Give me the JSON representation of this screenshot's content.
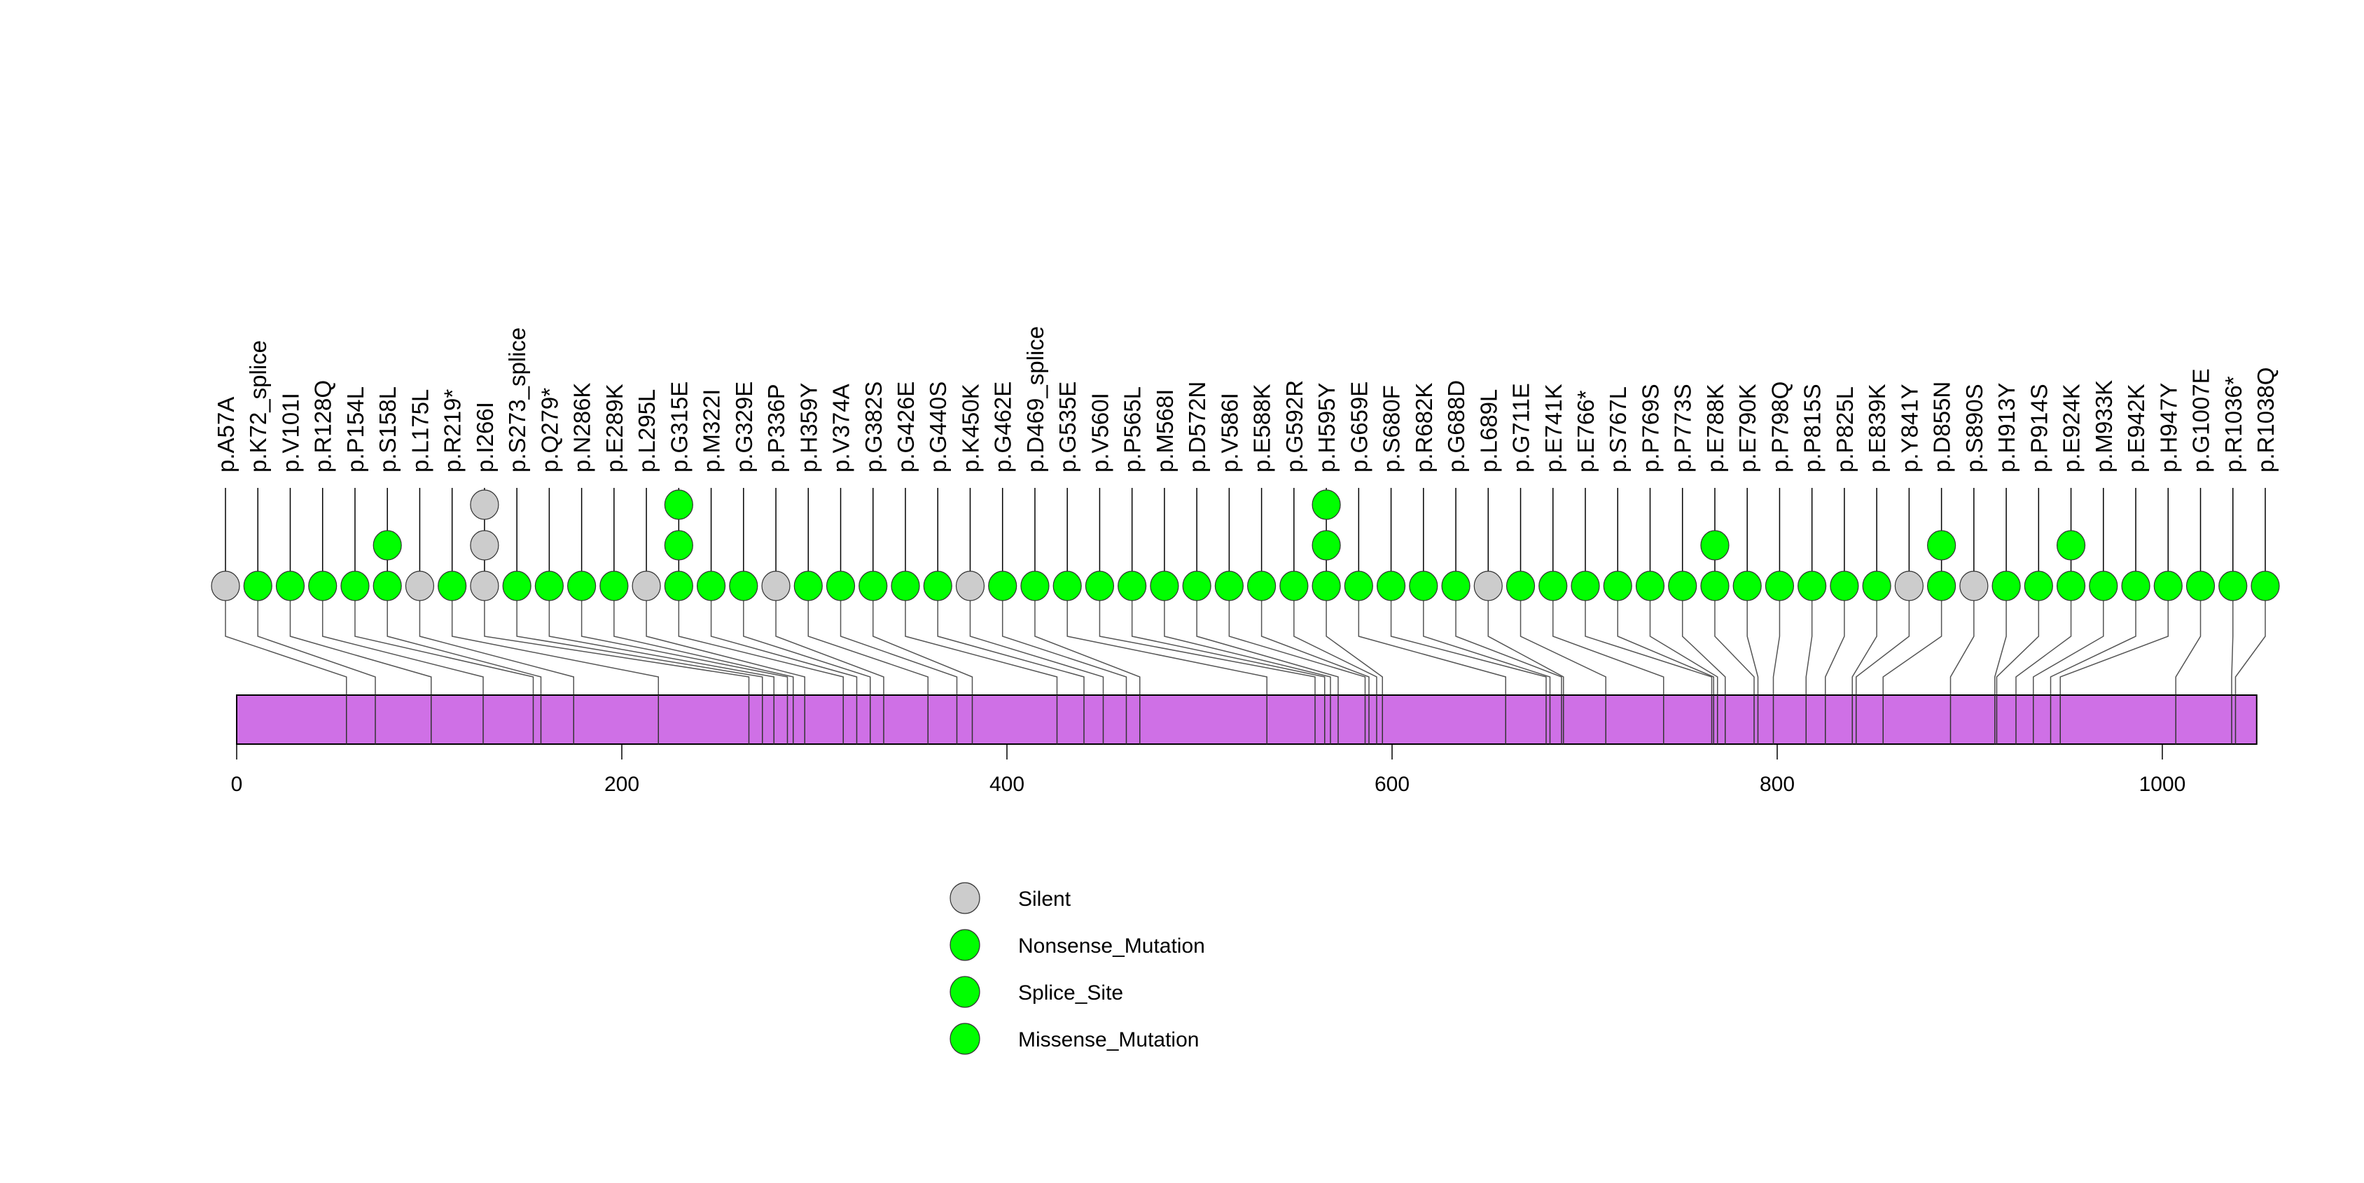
{
  "chart_data": {
    "type": "lollipop",
    "title": "",
    "xlabel": "",
    "ylabel": "",
    "xlim": [
      0,
      1049
    ],
    "protein_length": 1049,
    "x_ticks": [
      0,
      200,
      400,
      600,
      800,
      1000
    ],
    "x_tick_labels": [
      "0",
      "200",
      "400",
      "600",
      "800",
      "1000"
    ],
    "colors": {
      "Silent": "#cccccc",
      "Green": "#00ff00",
      "protein_bar": "#cf70e6"
    },
    "legend_position": "bottom-center",
    "legend": [
      {
        "label": "Silent",
        "color": "#cccccc"
      },
      {
        "label": "Nonsense_Mutation",
        "color": "#00ff00"
      },
      {
        "label": "Splice_Site",
        "color": "#00ff00"
      },
      {
        "label": "Missense_Mutation",
        "color": "#00ff00"
      }
    ],
    "mutations": [
      {
        "label": "p.A57A",
        "position": 57,
        "count": 1,
        "type": "Silent"
      },
      {
        "label": "p.K72_splice",
        "position": 72,
        "count": 1,
        "type": "Splice_Site"
      },
      {
        "label": "p.V101I",
        "position": 101,
        "count": 1,
        "type": "Missense_Mutation"
      },
      {
        "label": "p.R128Q",
        "position": 128,
        "count": 1,
        "type": "Missense_Mutation"
      },
      {
        "label": "p.P154L",
        "position": 154,
        "count": 1,
        "type": "Missense_Mutation"
      },
      {
        "label": "p.S158L",
        "position": 158,
        "count": 2,
        "type": "Missense_Mutation"
      },
      {
        "label": "p.L175L",
        "position": 175,
        "count": 1,
        "type": "Silent"
      },
      {
        "label": "p.R219*",
        "position": 219,
        "count": 1,
        "type": "Nonsense_Mutation"
      },
      {
        "label": "p.I266I",
        "position": 266,
        "count": 3,
        "type": "Silent"
      },
      {
        "label": "p.S273_splice",
        "position": 273,
        "count": 1,
        "type": "Splice_Site"
      },
      {
        "label": "p.Q279*",
        "position": 279,
        "count": 1,
        "type": "Nonsense_Mutation"
      },
      {
        "label": "p.N286K",
        "position": 286,
        "count": 1,
        "type": "Missense_Mutation"
      },
      {
        "label": "p.E289K",
        "position": 289,
        "count": 1,
        "type": "Missense_Mutation"
      },
      {
        "label": "p.L295L",
        "position": 295,
        "count": 1,
        "type": "Silent"
      },
      {
        "label": "p.G315E",
        "position": 315,
        "count": 3,
        "type": "Missense_Mutation"
      },
      {
        "label": "p.M322I",
        "position": 322,
        "count": 1,
        "type": "Missense_Mutation"
      },
      {
        "label": "p.G329E",
        "position": 329,
        "count": 1,
        "type": "Missense_Mutation"
      },
      {
        "label": "p.P336P",
        "position": 336,
        "count": 1,
        "type": "Silent"
      },
      {
        "label": "p.H359Y",
        "position": 359,
        "count": 1,
        "type": "Missense_Mutation"
      },
      {
        "label": "p.V374A",
        "position": 374,
        "count": 1,
        "type": "Missense_Mutation"
      },
      {
        "label": "p.G382S",
        "position": 382,
        "count": 1,
        "type": "Missense_Mutation"
      },
      {
        "label": "p.G426E",
        "position": 426,
        "count": 1,
        "type": "Missense_Mutation"
      },
      {
        "label": "p.G440S",
        "position": 440,
        "count": 1,
        "type": "Missense_Mutation"
      },
      {
        "label": "p.K450K",
        "position": 450,
        "count": 1,
        "type": "Silent"
      },
      {
        "label": "p.G462E",
        "position": 462,
        "count": 1,
        "type": "Missense_Mutation"
      },
      {
        "label": "p.D469_splice",
        "position": 469,
        "count": 1,
        "type": "Splice_Site"
      },
      {
        "label": "p.G535E",
        "position": 535,
        "count": 1,
        "type": "Missense_Mutation"
      },
      {
        "label": "p.V560I",
        "position": 560,
        "count": 1,
        "type": "Missense_Mutation"
      },
      {
        "label": "p.P565L",
        "position": 565,
        "count": 1,
        "type": "Missense_Mutation"
      },
      {
        "label": "p.M568I",
        "position": 568,
        "count": 1,
        "type": "Missense_Mutation"
      },
      {
        "label": "p.D572N",
        "position": 572,
        "count": 1,
        "type": "Missense_Mutation"
      },
      {
        "label": "p.V586I",
        "position": 586,
        "count": 1,
        "type": "Missense_Mutation"
      },
      {
        "label": "p.E588K",
        "position": 588,
        "count": 1,
        "type": "Missense_Mutation"
      },
      {
        "label": "p.G592R",
        "position": 592,
        "count": 1,
        "type": "Missense_Mutation"
      },
      {
        "label": "p.H595Y",
        "position": 595,
        "count": 3,
        "type": "Missense_Mutation"
      },
      {
        "label": "p.G659E",
        "position": 659,
        "count": 1,
        "type": "Missense_Mutation"
      },
      {
        "label": "p.S680F",
        "position": 680,
        "count": 1,
        "type": "Missense_Mutation"
      },
      {
        "label": "p.R682K",
        "position": 682,
        "count": 1,
        "type": "Missense_Mutation"
      },
      {
        "label": "p.G688D",
        "position": 688,
        "count": 1,
        "type": "Missense_Mutation"
      },
      {
        "label": "p.L689L",
        "position": 689,
        "count": 1,
        "type": "Silent"
      },
      {
        "label": "p.G711E",
        "position": 711,
        "count": 1,
        "type": "Missense_Mutation"
      },
      {
        "label": "p.E741K",
        "position": 741,
        "count": 1,
        "type": "Missense_Mutation"
      },
      {
        "label": "p.E766*",
        "position": 766,
        "count": 1,
        "type": "Nonsense_Mutation"
      },
      {
        "label": "p.S767L",
        "position": 767,
        "count": 1,
        "type": "Missense_Mutation"
      },
      {
        "label": "p.P769S",
        "position": 769,
        "count": 1,
        "type": "Missense_Mutation"
      },
      {
        "label": "p.P773S",
        "position": 773,
        "count": 1,
        "type": "Missense_Mutation"
      },
      {
        "label": "p.E788K",
        "position": 788,
        "count": 2,
        "type": "Missense_Mutation"
      },
      {
        "label": "p.E790K",
        "position": 790,
        "count": 1,
        "type": "Missense_Mutation"
      },
      {
        "label": "p.P798Q",
        "position": 798,
        "count": 1,
        "type": "Missense_Mutation"
      },
      {
        "label": "p.P815S",
        "position": 815,
        "count": 1,
        "type": "Missense_Mutation"
      },
      {
        "label": "p.P825L",
        "position": 825,
        "count": 1,
        "type": "Missense_Mutation"
      },
      {
        "label": "p.E839K",
        "position": 839,
        "count": 1,
        "type": "Missense_Mutation"
      },
      {
        "label": "p.Y841Y",
        "position": 841,
        "count": 1,
        "type": "Silent"
      },
      {
        "label": "p.D855N",
        "position": 855,
        "count": 2,
        "type": "Missense_Mutation"
      },
      {
        "label": "p.S890S",
        "position": 890,
        "count": 1,
        "type": "Silent"
      },
      {
        "label": "p.H913Y",
        "position": 913,
        "count": 1,
        "type": "Missense_Mutation"
      },
      {
        "label": "p.P914S",
        "position": 914,
        "count": 1,
        "type": "Missense_Mutation"
      },
      {
        "label": "p.E924K",
        "position": 924,
        "count": 2,
        "type": "Missense_Mutation"
      },
      {
        "label": "p.M933K",
        "position": 933,
        "count": 1,
        "type": "Missense_Mutation"
      },
      {
        "label": "p.E942K",
        "position": 942,
        "count": 1,
        "type": "Missense_Mutation"
      },
      {
        "label": "p.H947Y",
        "position": 947,
        "count": 1,
        "type": "Missense_Mutation"
      },
      {
        "label": "p.G1007E",
        "position": 1007,
        "count": 1,
        "type": "Missense_Mutation"
      },
      {
        "label": "p.R1036*",
        "position": 1036,
        "count": 1,
        "type": "Nonsense_Mutation"
      },
      {
        "label": "p.R1038Q",
        "position": 1038,
        "count": 1,
        "type": "Missense_Mutation"
      }
    ]
  }
}
